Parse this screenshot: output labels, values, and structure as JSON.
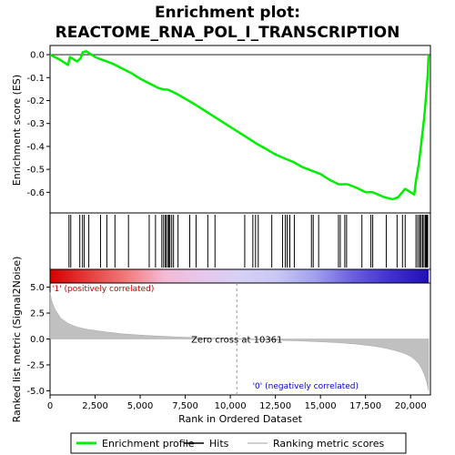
{
  "chart_data": {
    "type": "line",
    "title_line1": "Enrichment plot:",
    "title_line2": "REACTOME_RNA_POL_I_TRANSCRIPTION",
    "xlabel": "Rank in Ordered Dataset",
    "es_panel": {
      "ylabel": "Enrichment score (ES)",
      "ylim": [
        -0.69,
        0.04
      ],
      "yticks": [
        0.0,
        -0.1,
        -0.2,
        -0.3,
        -0.4,
        -0.5,
        -0.6
      ],
      "ytick_labels": [
        "0.0",
        "-0.1",
        "-0.2",
        "-0.3",
        "-0.4",
        "-0.5",
        "-0.6"
      ],
      "series": [
        {
          "color": "#00ee00",
          "x": [
            0,
            500,
            1000,
            1100,
            1500,
            1700,
            1800,
            2000,
            2200,
            2500,
            2800,
            3000,
            3500,
            4000,
            4500,
            5000,
            5500,
            6000,
            6300,
            6500,
            6700,
            7000,
            7500,
            8000,
            8500,
            9000,
            9500,
            10000,
            10500,
            11000,
            11500,
            12000,
            12500,
            13000,
            13500,
            14000,
            14500,
            15000,
            15500,
            16000,
            16500,
            17000,
            17500,
            17900,
            18500,
            19000,
            19300,
            19700,
            20000,
            20200,
            20300,
            20450,
            20600,
            20750,
            20850,
            20950,
            21000
          ],
          "y": [
            0.0,
            -0.02,
            -0.045,
            -0.01,
            -0.03,
            -0.015,
            0.01,
            0.015,
            0.005,
            -0.01,
            -0.02,
            -0.025,
            -0.04,
            -0.06,
            -0.08,
            -0.105,
            -0.125,
            -0.145,
            -0.152,
            -0.152,
            -0.158,
            -0.17,
            -0.192,
            -0.215,
            -0.24,
            -0.265,
            -0.29,
            -0.315,
            -0.34,
            -0.365,
            -0.39,
            -0.412,
            -0.435,
            -0.452,
            -0.468,
            -0.49,
            -0.505,
            -0.52,
            -0.545,
            -0.565,
            -0.565,
            -0.58,
            -0.6,
            -0.6,
            -0.62,
            -0.63,
            -0.622,
            -0.585,
            -0.6,
            -0.61,
            -0.55,
            -0.48,
            -0.38,
            -0.28,
            -0.19,
            -0.09,
            0.0
          ]
        }
      ]
    },
    "hits_panel": {
      "hit_x": [
        1050,
        1150,
        1650,
        1800,
        1900,
        2150,
        2800,
        3150,
        3600,
        4350,
        5500,
        5850,
        6200,
        6300,
        6400,
        6450,
        6550,
        6600,
        6650,
        6750,
        6850,
        7100,
        7750,
        8100,
        8750,
        9150,
        10800,
        11250,
        11400,
        11550,
        12300,
        12900,
        13050,
        13150,
        13300,
        13550,
        14500,
        14600,
        14900,
        16000,
        16100,
        16350,
        16450,
        17300,
        17800,
        17900,
        18650,
        19250,
        19550,
        19700,
        20300,
        20400,
        20500,
        20550,
        20650,
        20700,
        20800,
        20850,
        20900,
        20950
      ]
    },
    "rank_metric_panel": {
      "ylabel": "Ranked list metric (Signal2Noise)",
      "ylim": [
        -5.4,
        5.4
      ],
      "yticks": [
        5.0,
        2.5,
        0.0,
        -2.5,
        -5.0
      ],
      "ytick_labels": [
        "5.0",
        "2.5",
        "0.0",
        "-2.5",
        "-5.0"
      ],
      "metric_x": [
        0,
        100,
        300,
        600,
        1000,
        1500,
        2000,
        3000,
        4000,
        5000,
        6000,
        7000,
        8000,
        9000,
        10000,
        10361,
        11000,
        12000,
        13000,
        14000,
        15000,
        16000,
        17000,
        18000,
        18500,
        19000,
        19500,
        19800,
        20100,
        20300,
        20500,
        20650,
        20800,
        20900,
        21000
      ],
      "metric_y": [
        4.5,
        3.6,
        2.8,
        2.0,
        1.5,
        1.15,
        0.95,
        0.7,
        0.5,
        0.38,
        0.28,
        0.2,
        0.13,
        0.08,
        0.03,
        0.0,
        -0.05,
        -0.1,
        -0.15,
        -0.2,
        -0.27,
        -0.36,
        -0.5,
        -0.7,
        -0.85,
        -1.05,
        -1.3,
        -1.5,
        -1.8,
        -2.1,
        -2.5,
        -3.0,
        -3.6,
        -4.2,
        -5.0
      ],
      "zero_cross_label": "Zero cross at 10361",
      "zero_cross_x": 10361,
      "pos_label": "'1' (positively correlated)",
      "neg_label": "'0' (negatively correlated)"
    },
    "xlim": [
      0,
      21000
    ],
    "xticks": [
      0,
      2500,
      5000,
      7500,
      10000,
      12500,
      15000,
      17500,
      20000
    ],
    "xtick_labels": [
      "0",
      "2,500",
      "5,000",
      "7,500",
      "10,000",
      "12,500",
      "15,000",
      "17,500",
      "20,000"
    ],
    "heat_colors": [
      "#d40000",
      "#e63c3c",
      "#f07a7a",
      "#f4b8d4",
      "#e6c8ec",
      "#d6d0f4",
      "#c8c8f4",
      "#a0a0ee",
      "#6a5ee0",
      "#4030d0",
      "#2010b8"
    ],
    "legend": [
      {
        "label": "Enrichment profile",
        "color": "#00ee00"
      },
      {
        "label": "Hits",
        "color": "#000000"
      },
      {
        "label": "Ranking metric scores",
        "color": "#c0c0c0"
      }
    ]
  }
}
